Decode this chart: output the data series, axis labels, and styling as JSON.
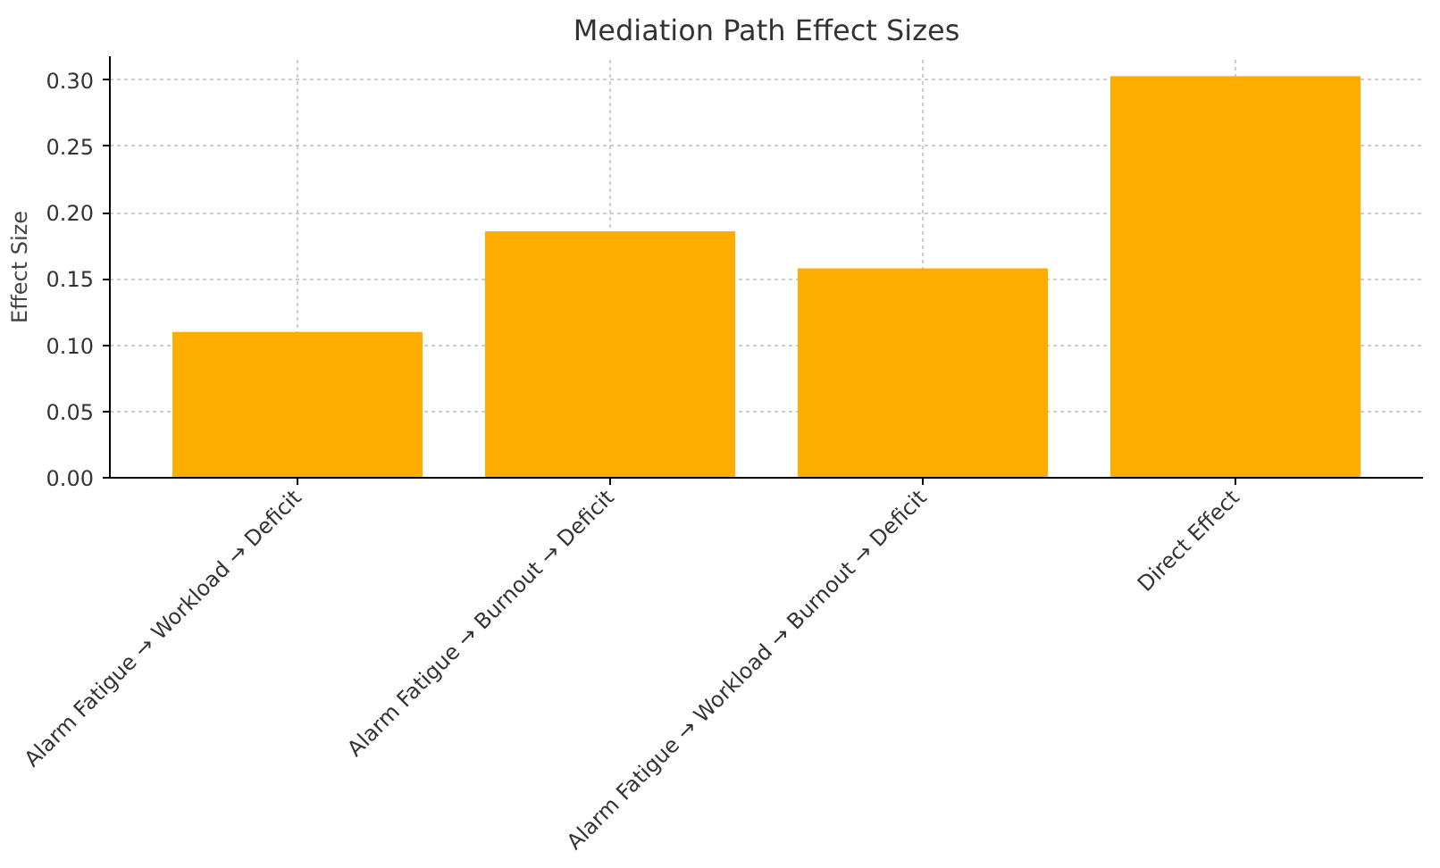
{
  "chart_data": {
    "type": "bar",
    "title": "Mediation Path Effect Sizes",
    "ylabel": "Effect Size",
    "categories": [
      "Alarm Fatigue → Workload → Deficit",
      "Alarm Fatigue → Burnout → Deficit",
      "Alarm Fatigue → Workload → Burnout → Deficit",
      "Direct Effect"
    ],
    "values": [
      0.11,
      0.186,
      0.158,
      0.303
    ],
    "color": "#ffad00",
    "ylim": [
      0,
      0.318
    ],
    "yticks": [
      {
        "value": 0,
        "label": "0.00"
      },
      {
        "value": 0.05,
        "label": "0.05"
      },
      {
        "value": 0.1,
        "label": "0.10"
      },
      {
        "value": 0.15,
        "label": "0.15"
      },
      {
        "value": 0.2,
        "label": "0.20"
      },
      {
        "value": 0.25,
        "label": "0.25"
      },
      {
        "value": 0.3,
        "label": "0.30"
      }
    ],
    "grid": true
  }
}
